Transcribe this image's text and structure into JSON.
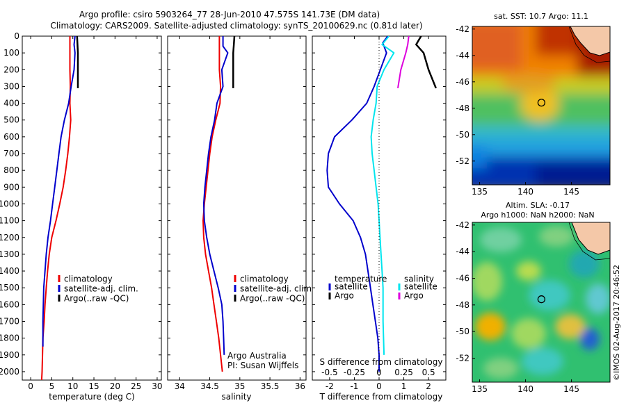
{
  "header": {
    "line1": "Argo profile: csiro 5903264_77 28-Jun-2010 47.575S 141.73E (DM data)",
    "line2": "Climatology: CARS2009. Satellite-adjusted climatology: synTS_20100629.nc (0.81d later)"
  },
  "colors": {
    "climatology": "#ee0000",
    "satellite": "#0000cc",
    "argo": "#000000",
    "sal_satellite": "#00e5ee",
    "sal_argo": "#dd00dd"
  },
  "chart_data": [
    {
      "type": "line",
      "panel": "temperature",
      "xlabel": "temperature (deg C)",
      "xticks": [
        0,
        5,
        10,
        15,
        20,
        25,
        30
      ],
      "xlim": [
        -2,
        31
      ],
      "ylim": [
        0,
        2050
      ],
      "yreversed": true,
      "yticks": [
        0,
        100,
        200,
        300,
        400,
        500,
        600,
        700,
        800,
        900,
        1000,
        1100,
        1200,
        1300,
        1400,
        1500,
        1600,
        1700,
        1800,
        1900,
        2000
      ],
      "legend": [
        "climatology",
        "satellite-adj. clim.",
        "Argo(..raw -QC)"
      ],
      "series": [
        {
          "name": "climatology",
          "color": "#ee0000",
          "x": [
            9.3,
            9.3,
            9.3,
            9.3,
            9.4,
            9.3,
            9.5,
            9.2,
            8.8,
            8.3,
            7.7,
            6.9,
            6.0,
            5.0,
            4.4,
            4.0,
            3.7,
            3.4,
            3.2,
            2.9,
            2.8,
            2.7,
            2.6
          ],
          "y": [
            0,
            50,
            100,
            200,
            300,
            400,
            500,
            600,
            700,
            800,
            900,
            1000,
            1100,
            1200,
            1300,
            1400,
            1500,
            1600,
            1700,
            1800,
            1900,
            2000,
            2050
          ]
        },
        {
          "name": "satellite-adj. clim.",
          "color": "#0000cc",
          "x": [
            10.5,
            10.3,
            10.5,
            10.3,
            9.6,
            9.0,
            8.0,
            7.2,
            6.7,
            6.2,
            5.7,
            5.2,
            4.7,
            4.1,
            3.7,
            3.4,
            3.1,
            3.0,
            2.9,
            2.9,
            2.9
          ],
          "y": [
            0,
            50,
            100,
            200,
            300,
            400,
            500,
            600,
            700,
            800,
            900,
            1000,
            1100,
            1200,
            1300,
            1400,
            1500,
            1600,
            1700,
            1800,
            1850
          ]
        },
        {
          "name": "Argo(..raw -QC)",
          "color": "#000000",
          "x": [
            11.0,
            11.1,
            11.2,
            11.2,
            11.2
          ],
          "y": [
            0,
            50,
            100,
            200,
            310
          ]
        }
      ]
    },
    {
      "type": "line",
      "panel": "salinity",
      "xlabel": "salinity",
      "xticks": [
        34,
        34.5,
        35,
        35.5,
        36
      ],
      "xlim": [
        33.8,
        36.1
      ],
      "ylim": [
        0,
        2050
      ],
      "yreversed": true,
      "legend": [
        "climatology",
        "satellite-adj. clim.",
        "Argo(..raw -QC)"
      ],
      "annotation": [
        "Argo Australia",
        "PI: Susan Wijffels"
      ],
      "series": [
        {
          "name": "climatology",
          "color": "#ee0000",
          "x": [
            34.66,
            34.66,
            34.66,
            34.66,
            34.68,
            34.67,
            34.6,
            34.54,
            34.5,
            34.47,
            34.44,
            34.41,
            34.39,
            34.4,
            34.43,
            34.48,
            34.53,
            34.57,
            34.61,
            34.65,
            34.68,
            34.71
          ],
          "y": [
            0,
            50,
            100,
            200,
            300,
            400,
            500,
            600,
            700,
            800,
            900,
            1000,
            1100,
            1200,
            1300,
            1400,
            1500,
            1600,
            1700,
            1800,
            1900,
            2000
          ]
        },
        {
          "name": "satellite-adj. clim.",
          "color": "#0000cc",
          "x": [
            34.72,
            34.72,
            34.8,
            34.7,
            34.72,
            34.62,
            34.58,
            34.52,
            34.48,
            34.45,
            34.42,
            34.4,
            34.41,
            34.45,
            34.5,
            34.57,
            34.64,
            34.7,
            34.72,
            34.73,
            34.74
          ],
          "y": [
            0,
            60,
            100,
            200,
            300,
            400,
            500,
            600,
            700,
            800,
            900,
            1000,
            1100,
            1200,
            1300,
            1400,
            1500,
            1600,
            1700,
            1800,
            1900
          ]
        },
        {
          "name": "Argo(..raw -QC)",
          "color": "#000000",
          "x": [
            34.91,
            34.9,
            34.89,
            34.89,
            34.89
          ],
          "y": [
            0,
            50,
            100,
            200,
            310
          ]
        }
      ]
    },
    {
      "type": "line",
      "panel": "difference",
      "xlabel": "T difference from climatology",
      "xticks": [
        -2,
        -1,
        0,
        1,
        2
      ],
      "xlim": [
        -2.7,
        2.7
      ],
      "top_axis_label": "S difference from climatology",
      "top_ticks": [
        -0.5,
        -0.25,
        0,
        0.25,
        0.5
      ],
      "ylim": [
        0,
        2050
      ],
      "yreversed": true,
      "legend": {
        "temperature": [
          "temperature",
          "satellite",
          "Argo"
        ],
        "salinity": [
          "salinity",
          "satellite",
          "Argo"
        ]
      },
      "series": [
        {
          "name": "temperature satellite",
          "color": "#0000cc",
          "x": [
            0.35,
            0.15,
            0.3,
            0.05,
            -0.2,
            -0.5,
            -1.1,
            -1.8,
            -2.05,
            -2.1,
            -2.05,
            -1.6,
            -1.05,
            -0.75,
            -0.55,
            -0.45,
            -0.35,
            -0.25,
            -0.15,
            -0.05,
            0.0,
            0.0
          ],
          "y": [
            0,
            40,
            100,
            200,
            300,
            400,
            500,
            600,
            700,
            800,
            900,
            1000,
            1100,
            1200,
            1300,
            1400,
            1500,
            1600,
            1700,
            1800,
            1900,
            2000
          ]
        },
        {
          "name": "temperature Argo",
          "color": "#000000",
          "x": [
            1.7,
            1.5,
            1.8,
            2.0,
            2.3
          ],
          "y": [
            0,
            50,
            100,
            200,
            310
          ]
        },
        {
          "name": "salinity satellite",
          "color": "#00e5ee",
          "x": [
            0.1,
            0.03,
            0.15,
            0.05,
            -0.02,
            -0.03,
            -0.06,
            -0.08,
            -0.07,
            -0.05,
            -0.03,
            -0.01,
            0.0,
            0.01,
            0.02,
            0.03,
            0.04,
            0.04,
            0.04,
            0.05
          ],
          "y": [
            0,
            50,
            100,
            200,
            300,
            400,
            500,
            600,
            700,
            800,
            900,
            1000,
            1100,
            1200,
            1300,
            1400,
            1500,
            1600,
            1700,
            1900
          ]
        },
        {
          "name": "salinity Argo",
          "color": "#dd00dd",
          "x": [
            0.3,
            0.29,
            0.27,
            0.22,
            0.19
          ],
          "y": [
            0,
            50,
            100,
            200,
            310
          ]
        }
      ]
    },
    {
      "type": "heatmap",
      "panel": "sst-map",
      "title": "sat. SST: 10.7  Argo: 11.1",
      "xticks": [
        135,
        140,
        145
      ],
      "yticks": [
        -42,
        -44,
        -46,
        -48,
        -50,
        -52
      ],
      "xlim": [
        134.2,
        149.2
      ],
      "ylim": [
        -53.8,
        -41.8
      ],
      "marker": {
        "lon": 141.73,
        "lat": -47.575
      }
    },
    {
      "type": "heatmap",
      "panel": "sla-map",
      "title": [
        "Altim. SLA: -0.17",
        "Argo h1000: NaN h2000: NaN"
      ],
      "xticks": [
        135,
        140,
        145
      ],
      "yticks": [
        -42,
        -44,
        -46,
        -48,
        -50,
        -52
      ],
      "xlim": [
        134.2,
        149.2
      ],
      "ylim": [
        -53.8,
        -41.8
      ],
      "marker": {
        "lon": 141.73,
        "lat": -47.575
      }
    }
  ],
  "stamp": "©IMOS 02-Aug-2017 20:46:52"
}
